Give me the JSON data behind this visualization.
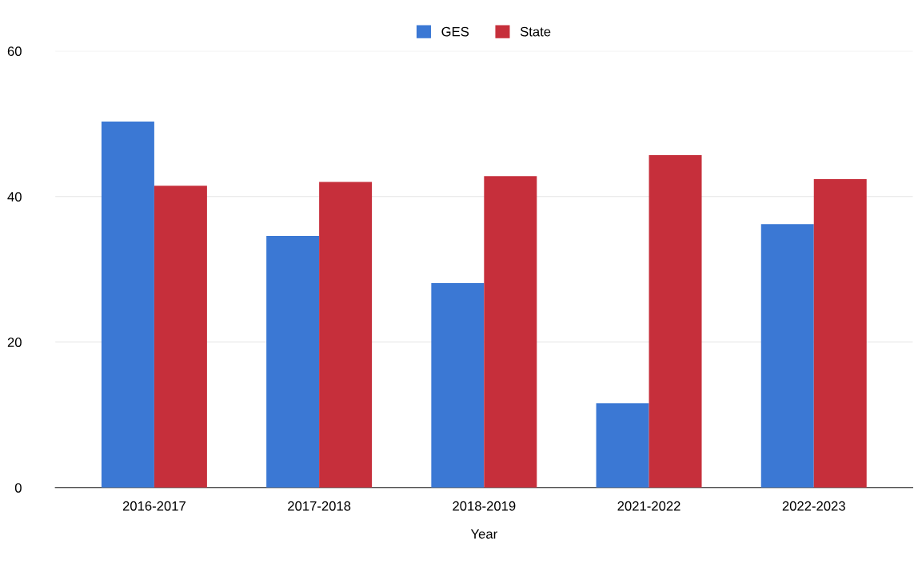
{
  "chart_data": {
    "type": "bar",
    "xlabel": "Year",
    "categories": [
      "2016-2017",
      "2017-2018",
      "2018-2019",
      "2021-2022",
      "2022-2023"
    ],
    "series": [
      {
        "name": "GES",
        "color": "#3b78d4",
        "values": [
          50.3,
          34.6,
          28.1,
          11.6,
          36.2
        ]
      },
      {
        "name": "State",
        "color": "#c62f3b",
        "values": [
          41.5,
          42.0,
          42.8,
          45.7,
          42.4
        ]
      }
    ],
    "ylim": [
      0,
      60
    ],
    "yticks": [
      0,
      20,
      40,
      60
    ],
    "grid": "y",
    "legend": "top"
  }
}
